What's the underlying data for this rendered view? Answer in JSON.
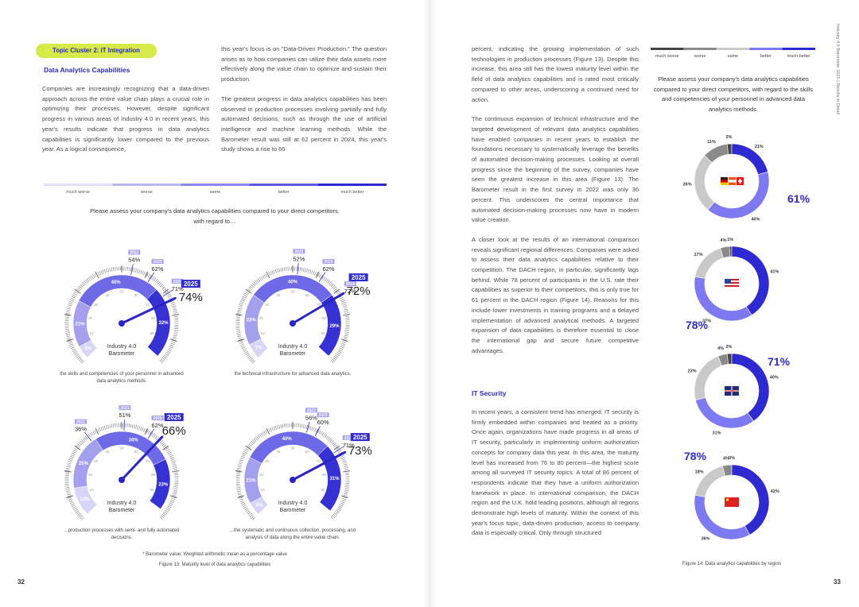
{
  "left_page": {
    "topic_tag": "Topic Cluster 2: IT Integration",
    "heading": "Data Analytics Capabilities",
    "column1": [
      "Companies are increasingly recognizing that a data-driven approach across the entire value chain plays a crucial role in optimizing their processes. However, despite significant progress in various areas of Industry 4.0 in recent years, this year's results indicate that progress in data analytics capabilities is significantly lower compared to the previous year. As a logical consequence,"
    ],
    "column2": [
      "this year's focus is on \"Data-Driven Production.\" The question arises as to how companies can utilize their data assets more effectively along the value chain to optimize and sustain their production.",
      "The greatest progress in data analytics capabilities has been observed in production processes involving partially and fully automated decisions, such as through the use of artificial intelligence and machine learning methods. While the Barometer result was still at 62 percent in 2024, this year's study shows a rise to 66"
    ],
    "legend": [
      "much worse",
      "worse",
      "same",
      "better",
      "much better"
    ],
    "question": "Please assess your company's data analytics capabilities compared to your direct competitors, with regard to…",
    "gauge_center_label": [
      "Industry 4.0",
      "Barometer"
    ],
    "gauge_scale": [
      10,
      20,
      30,
      40,
      50,
      60,
      70,
      80,
      90
    ],
    "gauges": [
      {
        "caption": "the skills and competencies of your personnel in advanced data analytics methods.",
        "years": [
          "2022",
          "2023",
          "2024",
          "2025"
        ],
        "values": [
          54,
          62,
          71,
          74
        ],
        "value_labels": [
          "54%",
          "62%",
          "71%",
          "74%"
        ],
        "segments": [
          6,
          21,
          40,
          32
        ],
        "segment_labels": [
          "6%",
          "21%",
          "40%",
          "32%"
        ]
      },
      {
        "caption": "the technical infrastructure for advanced data analytics.",
        "years": [
          "2022",
          "2023",
          "2024",
          "2025"
        ],
        "values": [
          52,
          62,
          72,
          72
        ],
        "value_labels": [
          "52%",
          "62%",
          "72%",
          "72%"
        ],
        "segments": [
          7,
          23,
          40,
          29
        ],
        "segment_labels": [
          "7%",
          "23%",
          "40%",
          "29%"
        ]
      },
      {
        "caption": "...production processes with semi- and fully automated decisions.",
        "years": [
          "2022",
          "2023",
          "2024",
          "2025"
        ],
        "values": [
          36,
          51,
          62,
          66
        ],
        "value_labels": [
          "36%",
          "51%",
          "62%",
          "66%"
        ],
        "segments": [
          13,
          25,
          36,
          23
        ],
        "segment_labels": [
          "13%",
          "25%",
          "36%",
          "23%"
        ]
      },
      {
        "caption": "...the systematic and continuous collection, processing, and analysis of data along the entire value chain.",
        "years": [
          "2022",
          "2023",
          "2024",
          "2025"
        ],
        "values": [
          56,
          60,
          71,
          73
        ],
        "value_labels": [
          "56%",
          "60%",
          "71%",
          "73%"
        ],
        "segments": [
          6,
          21,
          40,
          31
        ],
        "segment_labels": [
          "6%",
          "21%",
          "40%",
          "31%"
        ]
      }
    ],
    "footnote": "* Barometer value: Weighted arithmetic mean as a percentage value",
    "figure_caption": "Figure 13: Maturity level of data analytics capabilities",
    "page_number": "32"
  },
  "right_page": {
    "running_head": "Industry 4.0 Barometer 2025 | Results in Detail",
    "column": [
      "percent, indicating the growing implementation of such technologies in production processes (Figure 13). Despite this increase, this area still has the lowest maturity level within the field of data analytics capabilities and is rated most critically compared to other areas, underscoring a continued need for action.",
      "The continuous expansion of technical infrastructure and the targeted development of relevant data analytics capabilities have enabled companies in recent years to establish the foundations necessary to systematically leverage the benefits of automated decision-making processes. Looking at overall progress since the beginning of the survey, companies have seen the greatest increase in this area (Figure 13). The Barometer result in the first survey in 2022 was only 36 percent. This underscores the central importance that automated decision-making processes now have in modern value creation.",
      "A closer look at the results of an international comparison reveals significant regional differences. Companies were asked to assess their data analytics capabilities relative to their competition. The DACH region, in particular, significantly lags behind. While 78 percent of participants in the U.S. rate their capabilities as superior to their competitors, this is only true for 61 percent in the DACH region (Figure 14). Reasons for this include lower investments in training programs and a delayed implementation of advanced analytical methods. A targeted expansion of data capabilities is therefore essential to close the international gap and secure future competitive advantages."
    ],
    "subheading": "IT Security",
    "column_after": [
      "In recent years, a consistent trend has emerged: IT security is firmly embedded within companies and treated as a priority. Once again, organizations have made progress in all areas of IT security, particularly in implementing uniform authorization concepts for company data this year. In this area, the maturity level has increased from 76 to 80 percent—the highest score among all surveyed IT security topics. A total of 86 percent of respondents indicate that they have a uniform authorization framework in place. In international comparison, the DACH region and the U.K. hold leading positions, although all regions demonstrate high levels of maturity. Within the context of this year's focus topic, data-driven production, access to company data is especially critical. Only through structured"
    ],
    "legend": [
      "much worse",
      "worse",
      "same",
      "better",
      "much better"
    ],
    "question": "Please assess your company's data analytics capabilities compared to your direct competitors, with regard to the skills and competencies of your personnel in advanced data analytics methods.",
    "regions": [
      {
        "segments": [
          2,
          11,
          26,
          40,
          21
        ],
        "segment_labels": [
          "2%",
          "11%",
          "26%",
          "40%",
          "21%"
        ],
        "highlight": 61,
        "highlight_label": "61%"
      },
      {
        "segments": [
          1,
          4,
          17,
          37,
          41
        ],
        "segment_labels": [
          "1%",
          "4%",
          "17%",
          "37%",
          "41%"
        ],
        "highlight": 78,
        "highlight_label": "78%"
      },
      {
        "segments": [
          2,
          4,
          23,
          31,
          40
        ],
        "segment_labels": [
          "2%",
          "4%",
          "23%",
          "31%",
          "40%"
        ],
        "highlight": 71,
        "highlight_label": "71%"
      },
      {
        "segments": [
          0,
          4,
          18,
          36,
          42
        ],
        "segment_labels": [
          "0%",
          "4%",
          "18%",
          "36%",
          "42%"
        ],
        "highlight": 78,
        "highlight_label": "78%"
      }
    ],
    "figure_caption": "Figure 14: Data analytics capabilities by region",
    "page_number": "33"
  }
}
